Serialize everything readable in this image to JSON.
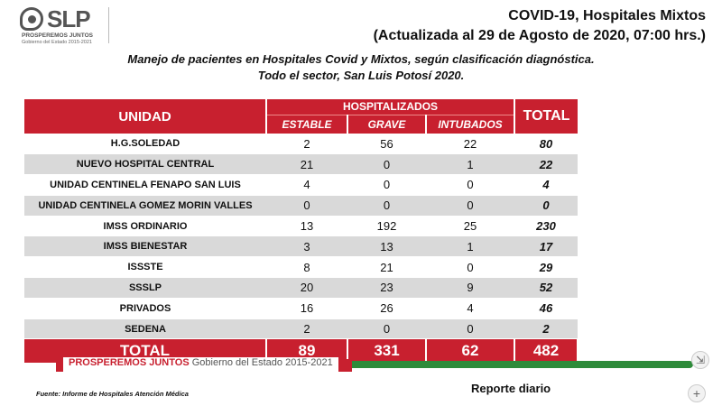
{
  "logo": {
    "text": "SLP",
    "line1": "PROSPEREMOS JUNTOS",
    "line2": "Gobierno del Estado 2015-2021"
  },
  "header": {
    "title_line1": "COVID-19, Hospitales Mixtos",
    "title_line2": "(Actualizada al 29 de Agosto de 2020, 07:00 hrs.)",
    "subtitle_line1": "Manejo de pacientes en Hospitales Covid y Mixtos, según clasificación diagnóstica.",
    "subtitle_line2": "Todo el sector, San Luis Potosí 2020."
  },
  "table": {
    "col_unidad": "UNIDAD",
    "col_hospitalizados": "HOSPITALIZADOS",
    "col_estable": "ESTABLE",
    "col_grave": "GRAVE",
    "col_intubados": "INTUBADOS",
    "col_total": "TOTAL",
    "rows": [
      {
        "unidad": "H.G.SOLEDAD",
        "estable": "2",
        "grave": "56",
        "intubados": "22",
        "total": "80"
      },
      {
        "unidad": "NUEVO HOSPITAL CENTRAL",
        "estable": "21",
        "grave": "0",
        "intubados": "1",
        "total": "22"
      },
      {
        "unidad": "UNIDAD CENTINELA FENAPO SAN LUIS",
        "estable": "4",
        "grave": "0",
        "intubados": "0",
        "total": "4"
      },
      {
        "unidad": "UNIDAD CENTINELA GOMEZ MORIN VALLES",
        "estable": "0",
        "grave": "0",
        "intubados": "0",
        "total": "0"
      },
      {
        "unidad": "IMSS ORDINARIO",
        "estable": "13",
        "grave": "192",
        "intubados": "25",
        "total": "230"
      },
      {
        "unidad": "IMSS BIENESTAR",
        "estable": "3",
        "grave": "13",
        "intubados": "1",
        "total": "17"
      },
      {
        "unidad": "ISSSTE",
        "estable": "8",
        "grave": "21",
        "intubados": "0",
        "total": "29"
      },
      {
        "unidad": "SSSLP",
        "estable": "20",
        "grave": "23",
        "intubados": "9",
        "total": "52"
      },
      {
        "unidad": "PRIVADOS",
        "estable": "16",
        "grave": "26",
        "intubados": "4",
        "total": "46"
      },
      {
        "unidad": "SEDENA",
        "estable": "2",
        "grave": "0",
        "intubados": "0",
        "total": "2"
      }
    ],
    "totals": {
      "label": "TOTAL",
      "estable": "89",
      "grave": "331",
      "intubados": "62",
      "total": "482"
    }
  },
  "footer": {
    "prosperemos": "PROSPEREMOS JUNTOS",
    "gobierno": "Gobierno del Estado 2015-2021",
    "fuente": "Fuente: Informe de Hospitales Atención Médica",
    "reporte": "Reporte diario"
  },
  "controls": {
    "expand_icon": "⇲",
    "plus_icon": "+"
  },
  "colors": {
    "accent_red": "#c8202f",
    "accent_green": "#2e8b3a",
    "row_alt": "#d9d9d9"
  }
}
